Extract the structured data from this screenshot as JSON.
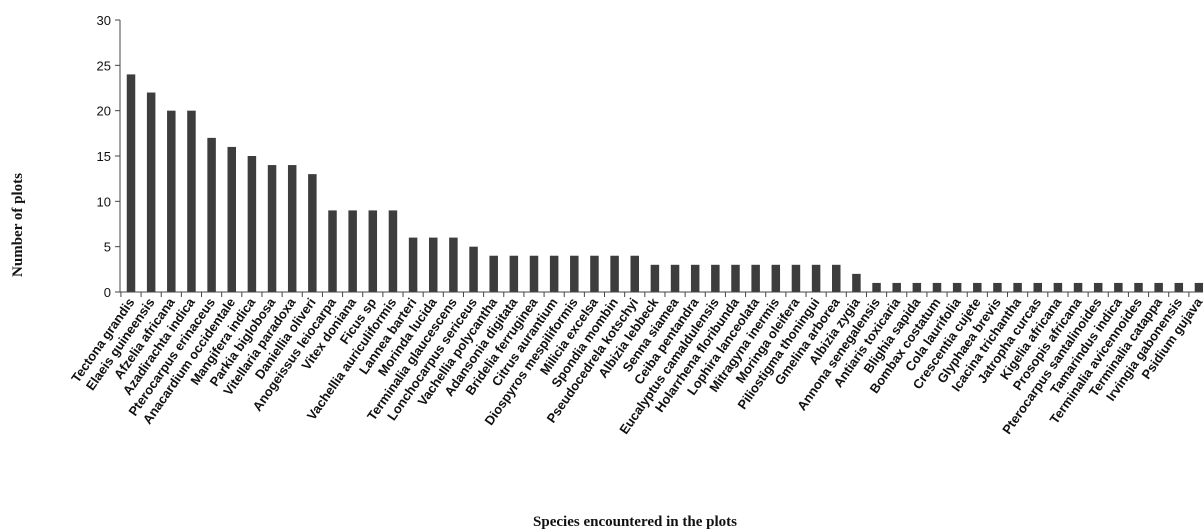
{
  "chart_data": {
    "type": "bar",
    "title": "",
    "xlabel": "Species encountered in the plots",
    "ylabel": "Number of  plots",
    "ylim": [
      0,
      30
    ],
    "yticks": [
      "0",
      "5",
      "10",
      "15",
      "20",
      "25",
      "30"
    ],
    "grid": false,
    "bar_color": "#3d3d3d",
    "categories": [
      "Tectona grandis",
      "Elaeis guineensis",
      "Afzelia africana",
      "Azadirachta indica",
      "Pterocarpus erinaceus",
      "Anacardium occidentale",
      "Mangifera indica",
      "Parkia biglobosa",
      "Vitellaria paradoxa",
      "Daniellia oliveri",
      "Anogeissus leiocarpa",
      "Vitex doniana",
      "Ficus sp",
      "Vachellia auriculiformis",
      "Lannea barteri",
      "Morinda lucida",
      "Terminalia glaucescens",
      "Lonchocarpus sericeus",
      "Vachellia polycantha",
      "Adansonia digitata",
      "Bridelia ferruginea",
      "Citrus aurantium",
      "Diospyros mespiliformis",
      "Milicia excelsa",
      "Spondia mombin",
      "Pseudocedrela kotschyi",
      "Albizia lebbeck",
      "Senna siamea",
      "Ceiba pentandra",
      "Eucalyptus camaldulensis",
      "Holarrhena floribunda",
      "Lophira lanceolata",
      "Mitragyna inermis",
      "Moringa oleifera",
      "Piliostigma thoningui",
      "Gmelina arborea",
      "Albizia zygia",
      "Annona senegalensis",
      "Antiaris toxicaria",
      "Blighia sapida",
      "Bombax costatum",
      "Cola laurifolia",
      "Crescentia cujete",
      "Glyphaea brevis",
      "Icacina trichantha",
      "Jatropha curcas",
      "Kigelia africana",
      "Prosopis africana",
      "Pterocarpus santalinoides",
      "Tamarindus indica",
      "Terminalia avicennoides",
      "Terminalia catappa",
      "Irvingia gabonensis",
      "Psidium gujava"
    ],
    "values": [
      24,
      22,
      20,
      20,
      17,
      16,
      15,
      14,
      14,
      13,
      9,
      9,
      9,
      9,
      6,
      6,
      6,
      5,
      4,
      4,
      4,
      4,
      4,
      4,
      4,
      4,
      3,
      3,
      3,
      3,
      3,
      3,
      3,
      3,
      3,
      3,
      2,
      1,
      1,
      1,
      1,
      1,
      1,
      1,
      1,
      1,
      1,
      1,
      1,
      1,
      1,
      1,
      1,
      1
    ]
  }
}
